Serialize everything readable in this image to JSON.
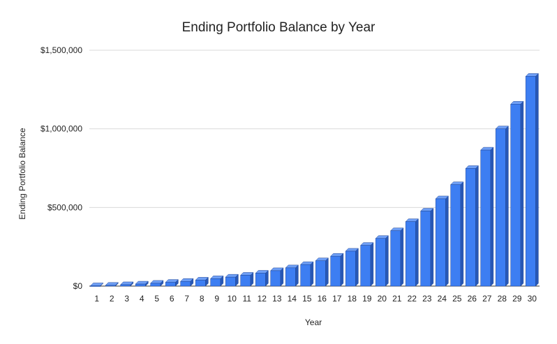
{
  "chart_data": {
    "type": "bar",
    "title": "Ending Portfolio Balance by Year",
    "xlabel": "Year",
    "ylabel": "Ending Portfolio Balance",
    "ylim": [
      0,
      1500000
    ],
    "yticks": [
      {
        "value": 0,
        "label": "$0"
      },
      {
        "value": 500000,
        "label": "$500,000"
      },
      {
        "value": 1000000,
        "label": "$1,000,000"
      },
      {
        "value": 1500000,
        "label": "$1,500,000"
      }
    ],
    "grid": true,
    "legend": "none",
    "style": "3d-bars",
    "categories": [
      "1",
      "2",
      "3",
      "4",
      "5",
      "6",
      "7",
      "8",
      "9",
      "10",
      "11",
      "12",
      "13",
      "14",
      "15",
      "16",
      "17",
      "18",
      "19",
      "20",
      "21",
      "22",
      "23",
      "24",
      "25",
      "26",
      "27",
      "28",
      "29",
      "30"
    ],
    "values": [
      2000,
      5000,
      9000,
      13000,
      18000,
      24000,
      30000,
      38000,
      47000,
      57000,
      69000,
      82000,
      98000,
      116000,
      137000,
      161000,
      190000,
      222000,
      259000,
      303000,
      352000,
      410000,
      477000,
      555000,
      645000,
      748000,
      865000,
      1000000,
      1157000,
      1334000
    ],
    "colors": {
      "bar_front": "#3d7ef2",
      "bar_top": "#6f9ff5",
      "bar_side": "#2858b6",
      "edge": "#1f4696"
    }
  }
}
